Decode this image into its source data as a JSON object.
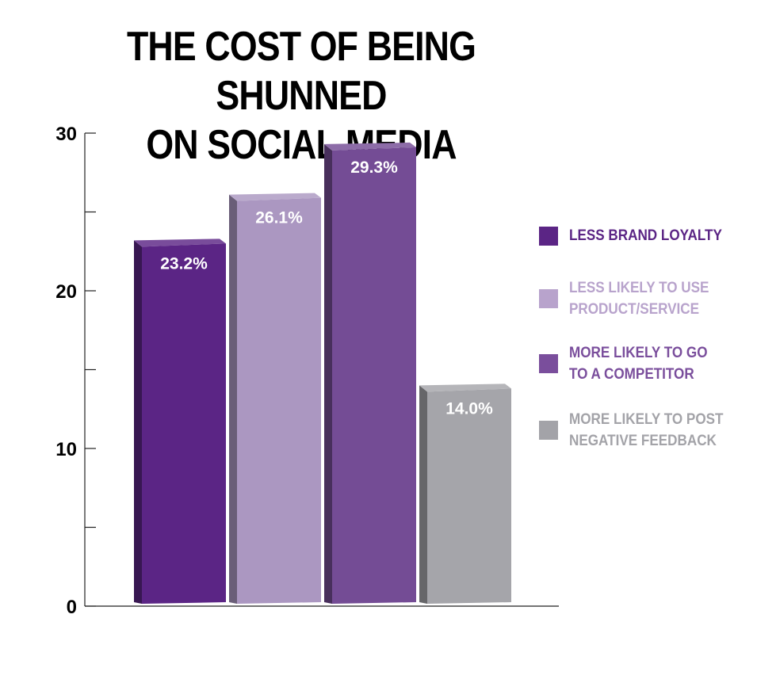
{
  "chart_data": {
    "type": "bar",
    "title": [
      "THE COST OF BEING SHUNNED",
      "ON SOCIAL MEDIA"
    ],
    "categories": [
      "LESS BRAND LOYALTY",
      "LESS LIKELY TO USE PRODUCT/SERVICE",
      "MORE LIKELY TO GO TO A COMPETITOR",
      "MORE LIKELY TO POST NEGATIVE FEEDBACK"
    ],
    "values": [
      23.2,
      26.1,
      29.3,
      14.0
    ],
    "data_labels": [
      "23.2%",
      "26.1%",
      "29.3%",
      "14.0%"
    ],
    "ylim": [
      0,
      30
    ],
    "yticks": [
      0,
      10,
      20,
      30
    ],
    "ytick_labels": [
      "0",
      "10",
      "20",
      "30"
    ],
    "grid": false,
    "legend_position": "right",
    "legend": [
      {
        "label": "LESS BRAND LOYALTY",
        "color": "#5b2585"
      },
      {
        "label": "LESS LIKELY TO USE\nPRODUCT/SERVICE",
        "color": "#b8a3cc"
      },
      {
        "label": "MORE LIKELY TO GO\nTO A COMPETITOR",
        "color": "#7a4e9c"
      },
      {
        "label": "MORE LIKELY TO POST\nNEGATIVE FEEDBACK",
        "color": "#a3a3a8"
      }
    ],
    "colors": {
      "bar_fronts": [
        "#5b2585",
        "#ab97c1",
        "#744c95",
        "#a5a5aa"
      ],
      "legend_text": [
        "#5b2585",
        "#b8a3cc",
        "#7a4e9c",
        "#a3a3a8"
      ]
    }
  }
}
